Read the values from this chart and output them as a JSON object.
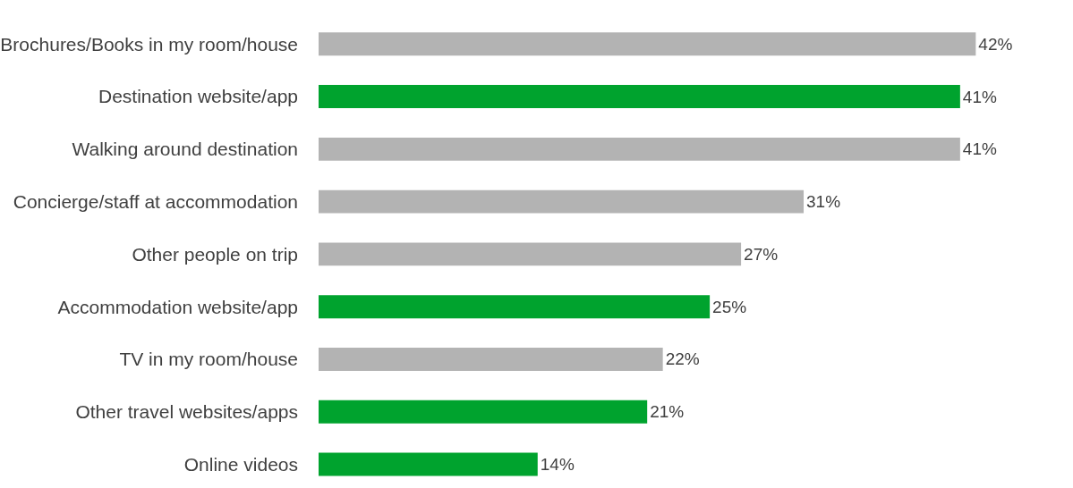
{
  "chart_data": {
    "type": "bar",
    "orientation": "horizontal",
    "categories": [
      "Brochures/Books in my room/house",
      "Destination website/app",
      "Walking around destination",
      "Concierge/staff at accommodation",
      "Other people on trip",
      "Accommodation website/app",
      "TV in my room/house",
      "Other travel websites/apps",
      "Online videos"
    ],
    "values": [
      42,
      41,
      41,
      31,
      27,
      25,
      22,
      21,
      14
    ],
    "colors": [
      "#b3b3b3",
      "#00a32e",
      "#b3b3b3",
      "#b3b3b3",
      "#b3b3b3",
      "#00a32e",
      "#b3b3b3",
      "#00a32e",
      "#00a32e"
    ],
    "value_labels": [
      "42%",
      "41%",
      "41%",
      "31%",
      "27%",
      "25%",
      "22%",
      "21%",
      "14%"
    ]
  }
}
